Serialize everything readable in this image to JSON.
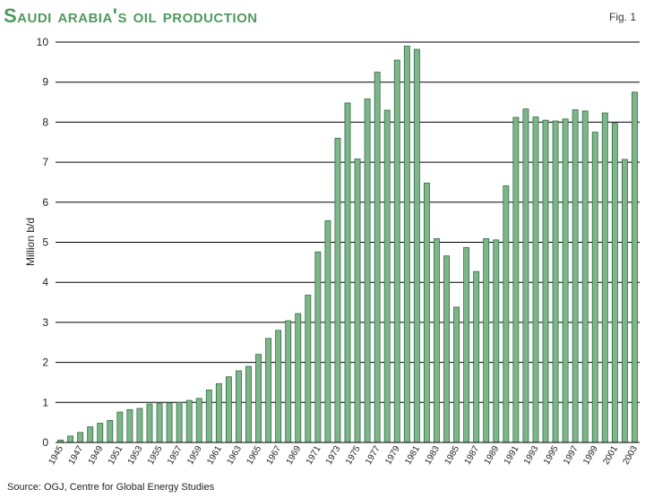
{
  "figure_label": "Fig. 1",
  "source": "Source: OGJ, Centre for Global Energy Studies",
  "colors": {
    "bar_fill": "#7fb58a",
    "bar_stroke": "#2f6d3f",
    "title": "#4f9a5e",
    "grid": "#000000"
  },
  "chart_data": {
    "type": "bar",
    "title": "Saudi arabia's oil production",
    "xlabel": "",
    "ylabel": "Million b/d",
    "ylim": [
      0,
      10
    ],
    "yticks": [
      0,
      1,
      2,
      3,
      4,
      5,
      6,
      7,
      8,
      9,
      10
    ],
    "grid": true,
    "categories": [
      "1945",
      "1946",
      "1947",
      "1948",
      "1949",
      "1950",
      "1951",
      "1952",
      "1953",
      "1954",
      "1955",
      "1956",
      "1957",
      "1958",
      "1959",
      "1960",
      "1961",
      "1962",
      "1963",
      "1964",
      "1965",
      "1966",
      "1967",
      "1968",
      "1969",
      "1970",
      "1971",
      "1972",
      "1973",
      "1974",
      "1975",
      "1976",
      "1977",
      "1978",
      "1979",
      "1980",
      "1981",
      "1982",
      "1983",
      "1984",
      "1985",
      "1986",
      "1987",
      "1988",
      "1989",
      "1990",
      "1991",
      "1992",
      "1993",
      "1994",
      "1995",
      "1996",
      "1997",
      "1998",
      "1999",
      "2000",
      "2001",
      "2002",
      "2003"
    ],
    "tick_labels": [
      "1945",
      "1947",
      "1949",
      "1951",
      "1953",
      "1955",
      "1957",
      "1959",
      "1961",
      "1963",
      "1965",
      "1967",
      "1969",
      "1971",
      "1973",
      "1975",
      "1977",
      "1979",
      "1981",
      "1983",
      "1985",
      "1987",
      "1989",
      "1991",
      "1993",
      "1995",
      "1997",
      "1999",
      "2001",
      "2003"
    ],
    "values": [
      0.06,
      0.16,
      0.25,
      0.39,
      0.48,
      0.55,
      0.76,
      0.82,
      0.85,
      0.96,
      0.97,
      0.99,
      1.0,
      1.05,
      1.1,
      1.31,
      1.47,
      1.64,
      1.79,
      1.9,
      2.2,
      2.6,
      2.8,
      3.04,
      3.22,
      3.68,
      4.76,
      5.54,
      7.6,
      8.48,
      7.08,
      8.58,
      9.25,
      8.3,
      9.55,
      9.9,
      9.82,
      6.48,
      5.09,
      4.66,
      3.38,
      4.87,
      4.27,
      5.09,
      5.06,
      6.41,
      8.12,
      8.33,
      8.13,
      8.05,
      8.03,
      8.08,
      8.31,
      8.28,
      7.75,
      8.23,
      7.97,
      7.07,
      8.75
    ]
  }
}
